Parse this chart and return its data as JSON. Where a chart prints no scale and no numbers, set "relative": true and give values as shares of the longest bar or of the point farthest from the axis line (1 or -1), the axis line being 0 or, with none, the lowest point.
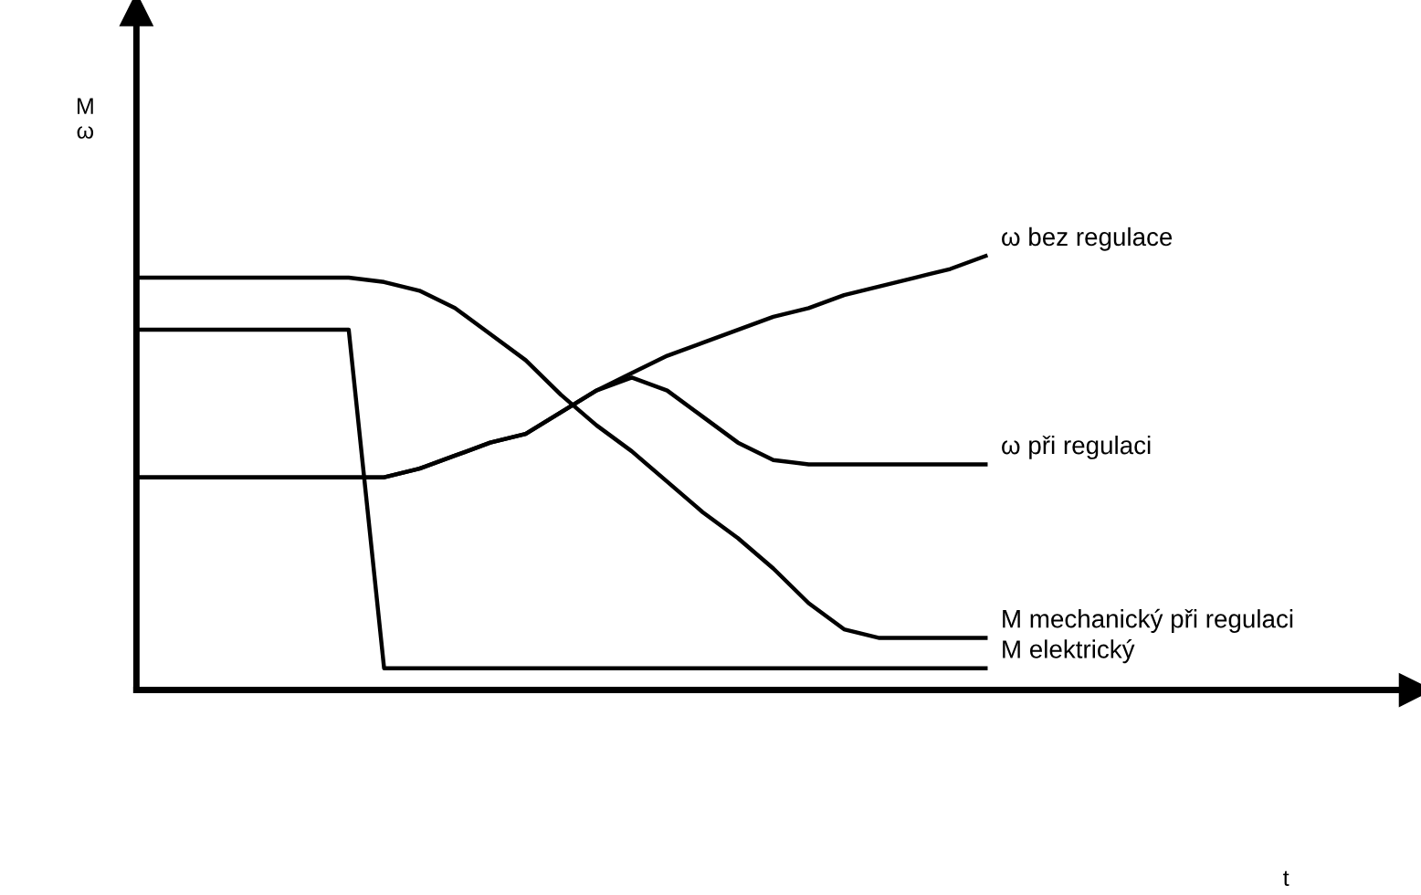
{
  "chart_data": {
    "type": "line",
    "relative": true,
    "annotations": [
      "M\nω",
      "t"
    ],
    "tick_labels": false,
    "line_style": "solid",
    "categories": [
      null,
      null,
      null,
      null,
      null,
      null,
      null,
      null,
      null,
      null,
      null,
      null,
      null,
      null,
      null,
      null,
      null,
      null,
      null,
      null,
      null,
      null,
      null,
      null,
      null
    ],
    "series": [
      {
        "name": "ω bez regulace",
        "color": "#000000",
        "values": [
          0.49,
          0.49,
          0.49,
          0.49,
          0.49,
          0.49,
          0.49,
          0.49,
          0.51,
          0.54,
          0.57,
          0.59,
          0.64,
          0.69,
          0.73,
          0.77,
          0.8,
          0.83,
          0.86,
          0.88,
          0.91,
          0.93,
          0.95,
          0.97,
          1.0
        ]
      },
      {
        "name": "ω při regulaci",
        "color": "#000000",
        "values": [
          0.49,
          0.49,
          0.49,
          0.49,
          0.49,
          0.49,
          0.49,
          0.49,
          0.51,
          0.54,
          0.57,
          0.59,
          0.64,
          0.69,
          0.72,
          0.69,
          0.63,
          0.57,
          0.53,
          0.52,
          0.52,
          0.52,
          0.52,
          0.52,
          0.52
        ]
      },
      {
        "name": "M mechanický při regulaci",
        "color": "#000000",
        "values": [
          0.95,
          0.95,
          0.95,
          0.95,
          0.95,
          0.95,
          0.95,
          0.94,
          0.92,
          0.88,
          0.82,
          0.76,
          0.68,
          0.61,
          0.55,
          0.48,
          0.41,
          0.35,
          0.28,
          0.2,
          0.14,
          0.12,
          0.12,
          0.12,
          0.12
        ]
      },
      {
        "name": "M elektrický",
        "color": "#000000",
        "values": [
          0.83,
          0.83,
          0.83,
          0.83,
          0.83,
          0.83,
          0.83,
          0.05,
          0.05,
          0.05,
          0.05,
          0.05,
          0.05,
          0.05,
          0.05,
          0.05,
          0.05,
          0.05,
          0.05,
          0.05,
          0.05,
          0.05,
          0.05,
          0.05,
          0.05
        ]
      }
    ]
  }
}
